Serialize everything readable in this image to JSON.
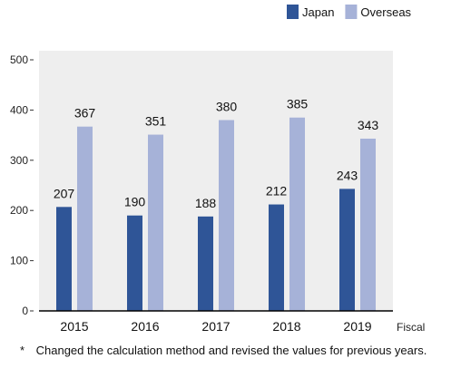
{
  "chart_data": {
    "type": "bar",
    "categories": [
      "2015",
      "2016",
      "2017",
      "2018",
      "2019"
    ],
    "series": [
      {
        "name": "Japan",
        "values": [
          207,
          190,
          188,
          212,
          243
        ],
        "color": "#2f5597"
      },
      {
        "name": "Overseas",
        "values": [
          367,
          351,
          380,
          385,
          343
        ],
        "color": "#a6b2d8"
      }
    ],
    "xlabel": "Fiscal",
    "ylabel": "",
    "ylim": [
      0,
      500
    ],
    "yticks": [
      0,
      100,
      200,
      300,
      400,
      500
    ],
    "grid": false,
    "legend_position": "top-right",
    "plot_background": "#eeeeee"
  },
  "footnote": {
    "mark": "*",
    "text": "Changed the calculation method and revised the values for previous years."
  }
}
